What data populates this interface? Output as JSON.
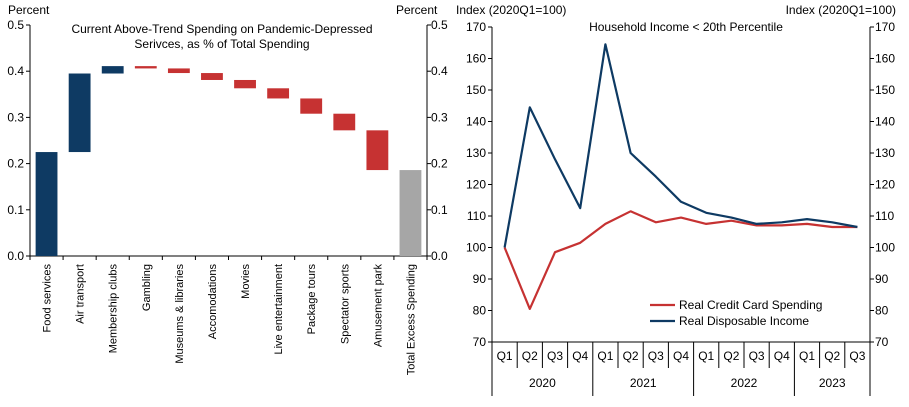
{
  "chart_data": [
    {
      "type": "bar",
      "subtype": "waterfall",
      "title": "Current Above-Trend Spending on Pandemic-Depressed Serivces, as % of Total Spending",
      "title_lines": [
        "Current Above-Trend  Spending on Pandemic-Depressed",
        "Serivces, as % of Total Spending"
      ],
      "ylabel_left": "Percent",
      "ylabel_right": "Percent",
      "ylim": [
        0,
        0.5
      ],
      "yticks": [
        0.0,
        0.1,
        0.2,
        0.3,
        0.4,
        0.5
      ],
      "ytick_labels": [
        "0.0",
        "0.1",
        "0.2",
        "0.3",
        "0.4",
        "0.5"
      ],
      "colors": {
        "positive": "#0e3a63",
        "negative": "#c63232",
        "total": "#a6a6a6"
      },
      "bars": [
        {
          "category": "Food services",
          "start": 0.0,
          "end": 0.225,
          "kind": "positive"
        },
        {
          "category": "Air transport",
          "start": 0.225,
          "end": 0.395,
          "kind": "positive"
        },
        {
          "category": "Membership clubs",
          "start": 0.395,
          "end": 0.411,
          "kind": "positive"
        },
        {
          "category": "Gambling",
          "start": 0.411,
          "end": 0.406,
          "kind": "negative"
        },
        {
          "category": "Museums & libraries",
          "start": 0.406,
          "end": 0.396,
          "kind": "negative"
        },
        {
          "category": "Accomodations",
          "start": 0.396,
          "end": 0.381,
          "kind": "negative"
        },
        {
          "category": "Movies",
          "start": 0.381,
          "end": 0.363,
          "kind": "negative"
        },
        {
          "category": "Live entertainment",
          "start": 0.363,
          "end": 0.341,
          "kind": "negative"
        },
        {
          "category": "Package tours",
          "start": 0.341,
          "end": 0.308,
          "kind": "negative"
        },
        {
          "category": "Spectator sports",
          "start": 0.308,
          "end": 0.272,
          "kind": "negative"
        },
        {
          "category": "Amusement park",
          "start": 0.272,
          "end": 0.186,
          "kind": "negative"
        },
        {
          "category": "Total Excess Spending",
          "start": 0.0,
          "end": 0.186,
          "kind": "total"
        }
      ]
    },
    {
      "type": "line",
      "title": "Household Income  < 20th Percentile",
      "ylabel_left": "Index (2020Q1=100)",
      "ylabel_right": "Index (2020Q1=100)",
      "ylim": [
        70,
        170
      ],
      "yticks": [
        70,
        80,
        90,
        100,
        110,
        120,
        130,
        140,
        150,
        160,
        170
      ],
      "x_quarters": [
        "Q1",
        "Q2",
        "Q3",
        "Q4",
        "Q1",
        "Q2",
        "Q3",
        "Q4",
        "Q1",
        "Q2",
        "Q3",
        "Q4",
        "Q1",
        "Q2",
        "Q3"
      ],
      "x_years": [
        {
          "label": "2020",
          "span": 4
        },
        {
          "label": "2021",
          "span": 4
        },
        {
          "label": "2022",
          "span": 4
        },
        {
          "label": "2023",
          "span": 3
        }
      ],
      "legend_position": "bottom-right",
      "series": [
        {
          "name": "Real Credit Card Spending",
          "color": "#c63232",
          "values": [
            100,
            80.5,
            98.5,
            101.5,
            107.5,
            111.5,
            108,
            109.5,
            107.5,
            108.5,
            107,
            107,
            107.5,
            106.5,
            106.5
          ]
        },
        {
          "name": "Real Disposable Income",
          "color": "#0e3a63",
          "values": [
            100,
            144.5,
            128,
            112.5,
            164.5,
            130,
            122.5,
            114.5,
            111,
            109.5,
            107.5,
            108,
            109,
            108,
            106.5
          ]
        }
      ]
    }
  ]
}
